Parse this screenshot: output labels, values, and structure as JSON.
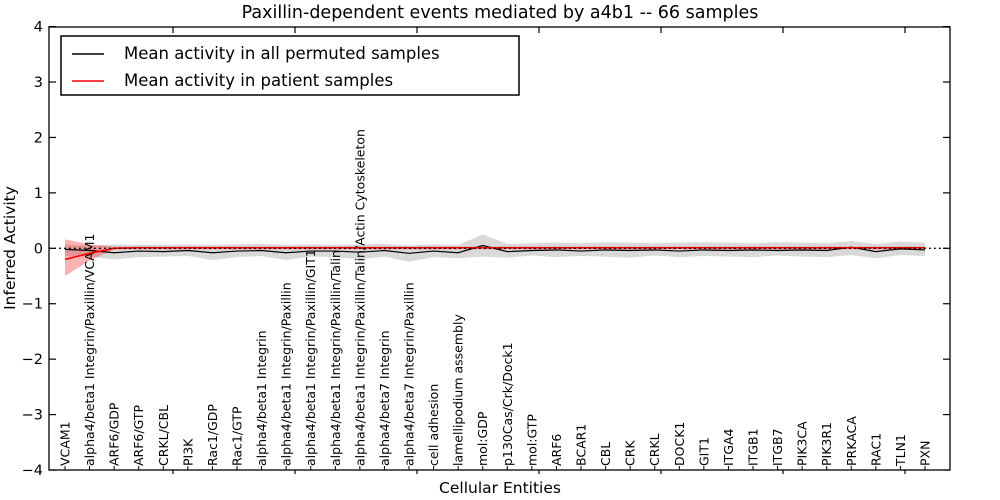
{
  "figure": {
    "title": "Paxillin-dependent events mediated by a4b1 -- 66 samples",
    "xlabel": "Cellular Entities",
    "ylabel": "Inferred Activity",
    "background": "#ffffff"
  },
  "legend": {
    "position": "upper left",
    "entries": [
      {
        "label": "Mean activity in all permuted samples",
        "color": "#000000"
      },
      {
        "label": "Mean activity in patient samples",
        "color": "#ff0000"
      }
    ]
  },
  "colors": {
    "permuted_line": "#000000",
    "permuted_band": "#d9d9d9",
    "patient_line": "#ff0000",
    "patient_band_rgba": "rgba(255,0,0,0.30)",
    "zero_line": "#000000",
    "axis": "#000000"
  },
  "chart_data": {
    "type": "line",
    "title": "Paxillin-dependent events mediated by a4b1 -- 66 samples",
    "xlabel": "Cellular Entities",
    "ylabel": "Inferred Activity",
    "ylim": [
      -4,
      4
    ],
    "yticks": [
      -4,
      -3,
      -2,
      -1,
      0,
      1,
      2,
      3,
      4
    ],
    "grid": false,
    "legend_position": "upper left",
    "zero_line": {
      "y": 0,
      "style": "dotted",
      "color": "#000000"
    },
    "categories": [
      "VCAM1",
      "alpha4/beta1 Integrin/Paxillin/VCAM1",
      "ARF6/GDP",
      "ARF6/GTP",
      "CRKL/CBL",
      "PI3K",
      "Rac1/GDP",
      "Rac1/GTP",
      "alpha4/beta1 Integrin",
      "alpha4/beta1 Integrin/Paxillin",
      "alpha4/beta1 Integrin/Paxillin/GIT1",
      "alpha4/beta1 Integrin/Paxillin/Talin",
      "alpha4/beta1 Integrin/Paxillin/Talin/Actin Cytoskeleton",
      "alpha4/beta7 Integrin",
      "alpha4/beta7 Integrin/Paxillin",
      "cell adhesion",
      "lamellipodium assembly",
      "mol:GDP",
      "p130Cas/Crk/Dock1",
      "mol:GTP",
      "ARF6",
      "BCAR1",
      "CBL",
      "CRK",
      "CRKL",
      "DOCK1",
      "GIT1",
      "ITGA4",
      "ITGB1",
      "ITGB7",
      "PIK3CA",
      "PIK3R1",
      "PRKACA",
      "RAC1",
      "TLN1",
      "PXN"
    ],
    "series": [
      {
        "name": "Mean activity in all permuted samples",
        "color": "#000000",
        "values": [
          -0.02,
          -0.04,
          -0.08,
          -0.05,
          -0.06,
          -0.04,
          -0.08,
          -0.05,
          -0.04,
          -0.08,
          -0.05,
          -0.05,
          -0.07,
          -0.04,
          -0.09,
          -0.05,
          -0.08,
          0.05,
          -0.06,
          -0.04,
          -0.03,
          -0.05,
          -0.03,
          -0.04,
          -0.03,
          -0.05,
          -0.03,
          -0.04,
          -0.03,
          -0.04,
          -0.03,
          -0.04,
          0.02,
          -0.06,
          -0.01,
          -0.03
        ],
        "band_hi": [
          0.06,
          0.05,
          0.07,
          0.06,
          0.06,
          0.07,
          0.06,
          0.07,
          0.08,
          0.06,
          0.07,
          0.06,
          0.07,
          0.08,
          0.05,
          0.07,
          0.06,
          0.25,
          0.08,
          0.09,
          0.1,
          0.09,
          0.11,
          0.1,
          0.09,
          0.1,
          0.11,
          0.1,
          0.09,
          0.11,
          0.1,
          0.09,
          0.13,
          0.08,
          0.12,
          0.1
        ],
        "band_lo": [
          -0.14,
          -0.15,
          -0.2,
          -0.16,
          -0.15,
          -0.14,
          -0.21,
          -0.16,
          -0.14,
          -0.21,
          -0.15,
          -0.16,
          -0.2,
          -0.15,
          -0.24,
          -0.16,
          -0.18,
          -0.15,
          -0.17,
          -0.13,
          -0.16,
          -0.14,
          -0.15,
          -0.17,
          -0.13,
          -0.16,
          -0.14,
          -0.15,
          -0.16,
          -0.13,
          -0.15,
          -0.16,
          -0.12,
          -0.18,
          -0.12,
          -0.14
        ]
      },
      {
        "name": "Mean activity in patient samples",
        "color": "#ff0000",
        "values": [
          -0.2,
          -0.09,
          0.0,
          0.01,
          0.01,
          0.01,
          0.01,
          0.01,
          0.01,
          0.01,
          0.01,
          0.01,
          0.01,
          0.01,
          0.01,
          0.01,
          0.01,
          0.01,
          0.01,
          0.01,
          0.01,
          0.01,
          0.01,
          0.01,
          0.01,
          0.01,
          0.01,
          0.01,
          0.01,
          0.01,
          0.01,
          0.01,
          0.01,
          0.01,
          0.01,
          0.01
        ],
        "band_hi": [
          0.16,
          0.07,
          0.03,
          0.03,
          0.03,
          0.03,
          0.03,
          0.03,
          0.03,
          0.03,
          0.03,
          0.03,
          0.03,
          0.03,
          0.03,
          0.03,
          0.03,
          0.03,
          0.03,
          0.03,
          0.03,
          0.03,
          0.03,
          0.03,
          0.03,
          0.03,
          0.03,
          0.03,
          0.03,
          0.03,
          0.03,
          0.03,
          0.03,
          0.03,
          0.03,
          0.03
        ],
        "band_lo": [
          -0.5,
          -0.22,
          -0.02,
          -0.02,
          -0.02,
          -0.02,
          -0.02,
          -0.02,
          -0.02,
          -0.02,
          -0.02,
          -0.02,
          -0.02,
          -0.02,
          -0.02,
          -0.02,
          -0.02,
          -0.02,
          -0.02,
          -0.02,
          -0.02,
          -0.02,
          -0.02,
          -0.02,
          -0.02,
          -0.02,
          -0.02,
          -0.02,
          -0.02,
          -0.02,
          -0.02,
          -0.02,
          -0.02,
          -0.02,
          -0.02,
          -0.02
        ]
      }
    ]
  }
}
